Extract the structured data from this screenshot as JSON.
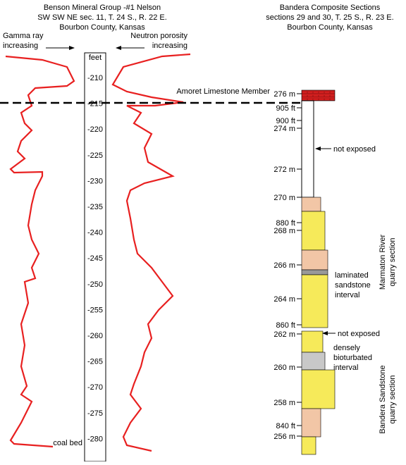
{
  "well": {
    "title": [
      "Benson Mineral Group -#1 Nelson",
      "SW SW NE sec. 11, T. 24 S., R. 22 E.",
      "Bourbon County, Kansas"
    ],
    "gamma_label": [
      "Gamma ray",
      "increasing"
    ],
    "neutron_label": [
      "Neutron porosity",
      "increasing"
    ],
    "depth_unit": "feet",
    "depths": [
      "-210",
      "-215",
      "-220",
      "-225",
      "-230",
      "-235",
      "-240",
      "-245",
      "-250",
      "-255",
      "-260",
      "-265",
      "-270",
      "-275",
      "-280"
    ],
    "coal_bed": "coal bed"
  },
  "section": {
    "title": [
      "Bandera Composite Sections",
      "sections 29 and 30, T. 25 S., R. 23 E.",
      "Bourbon County, Kansas"
    ],
    "member": "Amoret Limestone Member",
    "elevations": [
      "276 m",
      "905 ft",
      "900 ft",
      "274 m",
      "272 m",
      "270 m",
      "880 ft",
      "268 m",
      "266 m",
      "264 m",
      "860 ft",
      "262 m",
      "260 m",
      "258 m",
      "840 ft",
      "256 m"
    ],
    "not_exposed_upper": "not exposed",
    "not_exposed_lower": "not exposed",
    "laminated": [
      "laminated",
      "sandstone",
      "interval"
    ],
    "bioturbated": [
      "densely",
      "bioturbated",
      "interval"
    ],
    "marmaton": [
      "Marmaton River",
      "quarry section"
    ],
    "bandera": [
      "Bandera Sandstone",
      "quarry section"
    ]
  }
}
